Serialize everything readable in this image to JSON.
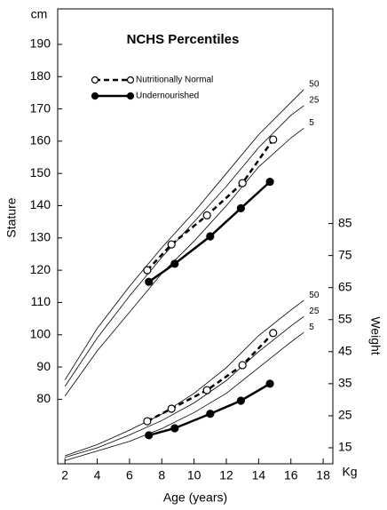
{
  "chart_data": {
    "type": "line",
    "title": "NCHS Percentiles",
    "y_unit": "cm",
    "y2_unit": "Kg",
    "ylabel": "Stature",
    "y2label": "Weight",
    "xlabel": "Age (years)",
    "xlim": [
      1.55,
      18.6
    ],
    "xticks": [
      2,
      4,
      6,
      8,
      10,
      12,
      14,
      16,
      18
    ],
    "ylim": [
      60,
      201
    ],
    "yticks": [
      80,
      90,
      100,
      110,
      120,
      130,
      140,
      150,
      160,
      170,
      180,
      190
    ],
    "y2lim": [
      10,
      152
    ],
    "y2ticks": [
      15,
      25,
      35,
      45,
      55,
      65,
      75,
      85
    ],
    "series": [
      {
        "name": "Nutritionally Normal",
        "color": "#000000",
        "marker": "open",
        "dashed": true,
        "x": [
          7.1,
          8.6,
          10.8,
          13.0,
          14.9
        ],
        "values": [
          120,
          128,
          137,
          147,
          160.5
        ],
        "y2_values": [
          23.3,
          27.2,
          33,
          40.8,
          50.8
        ]
      },
      {
        "name": "Undernourished",
        "color": "#000000",
        "marker": "filled",
        "dashed": false,
        "x": [
          7.2,
          8.8,
          11.0,
          12.9,
          14.7
        ],
        "values": [
          116.4,
          122,
          130.5,
          139.2,
          147.4
        ],
        "y2_values": [
          18.9,
          21.1,
          25.6,
          29.7,
          35
        ]
      }
    ],
    "percentile_curves": [
      {
        "name": "50",
        "axis": "y",
        "x": [
          2,
          4,
          6,
          8,
          10,
          12,
          14,
          16,
          16.8
        ],
        "values": [
          86,
          102,
          115,
          127,
          138,
          150,
          162,
          172,
          176
        ]
      },
      {
        "name": "25",
        "axis": "y",
        "x": [
          2,
          4,
          6,
          8,
          10,
          12,
          14,
          16,
          16.8
        ],
        "values": [
          84,
          99,
          112,
          124,
          135,
          146,
          158,
          168,
          171
        ]
      },
      {
        "name": "5",
        "axis": "y",
        "x": [
          2,
          4,
          6,
          8,
          10,
          12,
          14,
          16,
          16.8
        ],
        "values": [
          81,
          95,
          107,
          119,
          129,
          140,
          152,
          161,
          164
        ]
      },
      {
        "name": "50",
        "axis": "y2",
        "x": [
          2,
          4,
          6,
          8,
          10,
          12,
          14,
          16,
          16.8
        ],
        "values": [
          12.5,
          16,
          20.5,
          25.5,
          32,
          40,
          50,
          58,
          61
        ]
      },
      {
        "name": "25",
        "axis": "y2",
        "x": [
          2,
          4,
          6,
          8,
          10,
          12,
          14,
          16,
          16.8
        ],
        "values": [
          12,
          15,
          19,
          23.5,
          29,
          36,
          45,
          53,
          56
        ]
      },
      {
        "name": "5",
        "axis": "y2",
        "x": [
          2,
          4,
          6,
          8,
          10,
          12,
          14,
          16,
          16.8
        ],
        "values": [
          11,
          14,
          17,
          21,
          26,
          32,
          40,
          48,
          51
        ]
      }
    ]
  }
}
